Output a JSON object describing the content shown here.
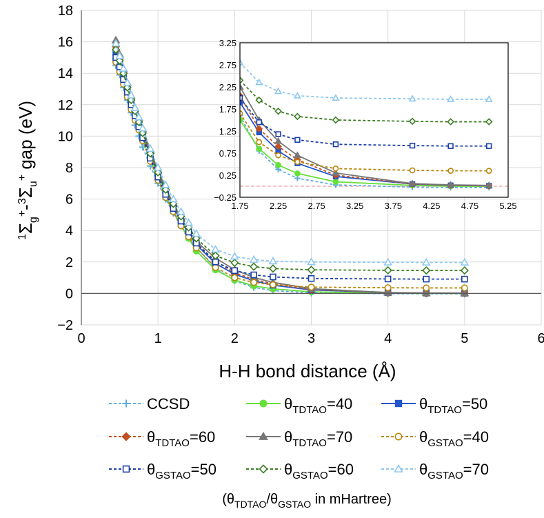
{
  "chart_data": [
    {
      "type": "line",
      "title": "",
      "xlabel": "H-H bond distance (Å)",
      "ylabel": {
        "p1": "1",
        "p2": "Σ",
        "p3": "g",
        "p4": "+",
        "p5": "-",
        "p6": "3",
        "p7": "Σ",
        "p8": "u",
        "p9": "+",
        "p10": " gap (eV)"
      },
      "xlim": [
        0,
        6
      ],
      "ylim": [
        -2,
        18
      ],
      "xticks": [
        "0",
        "1",
        "2",
        "3",
        "4",
        "5",
        "6"
      ],
      "yticks": [
        "−2",
        "0",
        "2",
        "4",
        "6",
        "8",
        "10",
        "12",
        "14",
        "16",
        "18"
      ],
      "grid": true,
      "legend_position": "bottom",
      "legend_note": {
        "pre": "(θ",
        "sub1": "TDTAO",
        "mid": "/θ",
        "sub2": "GSTAO",
        "post": " in mHartree)"
      },
      "x": [
        0.45,
        0.5,
        0.55,
        0.6,
        0.65,
        0.7,
        0.75,
        0.8,
        0.9,
        1.0,
        1.1,
        1.2,
        1.3,
        1.4,
        1.5,
        1.75,
        2.0,
        2.25,
        2.5,
        3.0,
        4.0,
        4.5,
        5.0
      ],
      "series": [
        {
          "name": "CCSD",
          "legend": {
            "main": "CCSD"
          },
          "color": "#5DADE2",
          "dash": true,
          "marker": "plus",
          "values": [
            14.5,
            13.9,
            13.1,
            12.3,
            11.5,
            10.7,
            10.0,
            9.3,
            8.1,
            7.0,
            6.0,
            5.1,
            4.3,
            3.6,
            2.9,
            1.6,
            0.8,
            0.38,
            0.18,
            0.03,
            -0.02,
            -0.03,
            -0.03
          ]
        },
        {
          "name": "θTDTAO=40",
          "legend": {
            "pre": "θ",
            "sub": "TDTAO",
            "post": "=40"
          },
          "color": "#66E03A",
          "dash": false,
          "marker": "circle",
          "values": [
            14.9,
            14.3,
            13.5,
            12.6,
            11.8,
            11.1,
            10.5,
            9.8,
            8.5,
            7.3,
            6.2,
            5.2,
            4.3,
            3.5,
            2.7,
            1.5,
            0.85,
            0.48,
            0.29,
            0.1,
            0.02,
            0.0,
            0.0
          ]
        },
        {
          "name": "θTDTAO=50",
          "legend": {
            "pre": "θ",
            "sub": "TDTAO",
            "post": "=50"
          },
          "color": "#2255CC",
          "dash": false,
          "marker": "square",
          "values": [
            15.3,
            14.6,
            13.8,
            12.9,
            12.1,
            11.4,
            10.8,
            10.1,
            8.8,
            7.6,
            6.5,
            5.5,
            4.6,
            3.8,
            3.1,
            1.9,
            1.22,
            0.8,
            0.52,
            0.22,
            0.05,
            0.02,
            0.01
          ]
        },
        {
          "name": "θTDTAO=60",
          "legend": {
            "pre": "θ",
            "sub": "TDTAO",
            "post": "=60"
          },
          "color": "#C0501E",
          "dash": true,
          "marker": "diamond",
          "values": [
            15.7,
            14.9,
            14.1,
            13.2,
            12.4,
            11.6,
            11.0,
            10.3,
            9.0,
            7.7,
            6.6,
            5.6,
            4.7,
            3.9,
            3.2,
            2.05,
            1.3,
            0.9,
            0.6,
            0.25,
            0.05,
            0.02,
            0.01
          ]
        },
        {
          "name": "θTDTAO=70",
          "legend": {
            "pre": "θ",
            "sub": "TDTAO",
            "post": "=70"
          },
          "color": "#777777",
          "dash": false,
          "marker": "triangle",
          "values": [
            16.1,
            15.2,
            14.3,
            13.4,
            12.6,
            11.8,
            11.2,
            10.5,
            9.1,
            7.8,
            6.7,
            5.7,
            4.8,
            4.0,
            3.3,
            2.25,
            1.5,
            1.02,
            0.7,
            0.3,
            0.06,
            0.03,
            0.02
          ]
        },
        {
          "name": "θGSTAO=40",
          "legend": {
            "pre": "θ",
            "sub": "GSTAO",
            "post": "=40"
          },
          "color": "#B8860B",
          "dash": true,
          "marker": "ocircle",
          "values": [
            14.7,
            14.1,
            13.3,
            12.5,
            11.7,
            11.0,
            10.4,
            9.7,
            8.4,
            7.2,
            6.1,
            5.2,
            4.3,
            3.6,
            2.9,
            1.65,
            1.0,
            0.7,
            0.55,
            0.4,
            0.36,
            0.35,
            0.35
          ]
        },
        {
          "name": "θGSTAO=50",
          "legend": {
            "pre": "θ",
            "sub": "GSTAO",
            "post": "=50"
          },
          "color": "#1A3FA8",
          "dash": true,
          "marker": "osquare",
          "values": [
            15.0,
            14.4,
            13.6,
            12.8,
            12.0,
            11.3,
            10.6,
            9.9,
            8.6,
            7.4,
            6.3,
            5.4,
            4.6,
            3.9,
            3.2,
            2.0,
            1.45,
            1.18,
            1.05,
            0.95,
            0.92,
            0.91,
            0.91
          ]
        },
        {
          "name": "θGSTAO=60",
          "legend": {
            "pre": "θ",
            "sub": "GSTAO",
            "post": "=60"
          },
          "color": "#3A7D22",
          "dash": true,
          "marker": "odiamond",
          "values": [
            15.5,
            14.8,
            14.0,
            13.1,
            12.3,
            11.6,
            10.9,
            10.2,
            8.9,
            7.7,
            6.6,
            5.7,
            4.9,
            4.2,
            3.5,
            2.4,
            1.95,
            1.7,
            1.58,
            1.5,
            1.47,
            1.46,
            1.46
          ]
        },
        {
          "name": "θGSTAO=70",
          "legend": {
            "pre": "θ",
            "sub": "GSTAO",
            "post": "=70"
          },
          "color": "#8EC8F0",
          "dash": true,
          "marker": "otriangle",
          "values": [
            15.9,
            15.1,
            14.3,
            13.4,
            12.6,
            11.8,
            11.2,
            10.5,
            9.2,
            8.0,
            6.9,
            6.0,
            5.2,
            4.5,
            3.8,
            2.8,
            2.35,
            2.15,
            2.05,
            2.0,
            1.98,
            1.97,
            1.97
          ]
        }
      ]
    },
    {
      "type": "line",
      "title": "",
      "inset": true,
      "xlim": [
        1.75,
        5.25
      ],
      "ylim": [
        -0.25,
        3.25
      ],
      "xticks": [
        "1.75",
        "2.25",
        "2.75",
        "3.25",
        "3.75",
        "4.25",
        "4.75",
        "5.25"
      ],
      "yticks": [
        "−0.25",
        "0.25",
        "0.75",
        "1.25",
        "1.75",
        "2.25",
        "2.75",
        "3.25"
      ],
      "reference_line": {
        "y": 0,
        "color": "#E8A0A0"
      },
      "uses_series_of_main": true
    }
  ]
}
